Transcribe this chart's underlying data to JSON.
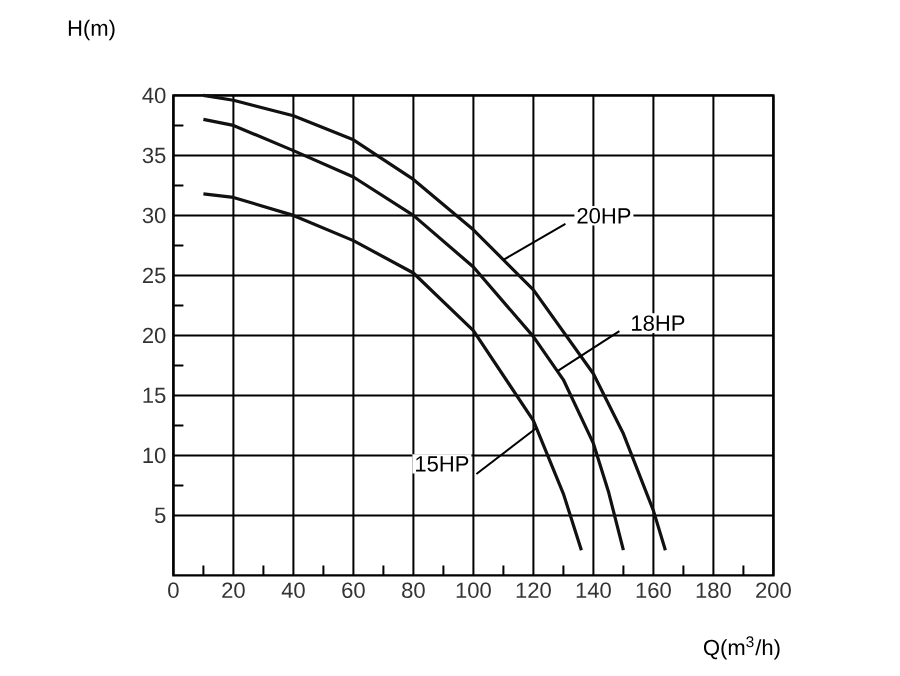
{
  "chart_data": {
    "type": "line",
    "xlabel": "Q(m$^{3}$/h)",
    "ylabel": "H(m)",
    "xlim": [
      0,
      200
    ],
    "ylim": [
      0,
      40
    ],
    "xticks": [
      0,
      20,
      40,
      60,
      80,
      100,
      120,
      140,
      160,
      180,
      200
    ],
    "yticks": [
      5,
      10,
      15,
      20,
      25,
      30,
      35,
      40
    ],
    "grid": true,
    "marker": "none",
    "line_style": "solid",
    "series": [
      {
        "color": "#111111",
        "x": [
          10,
          20,
          40,
          60,
          80,
          100,
          120,
          140,
          150,
          160,
          164
        ],
        "values": [
          40,
          39.6,
          38.3,
          36.3,
          33,
          28.8,
          23.8,
          16.8,
          11.8,
          5.4,
          2.1
        ]
      },
      {
        "color": "#111111",
        "x": [
          10,
          20,
          40,
          60,
          80,
          100,
          120,
          130,
          140,
          145,
          150
        ],
        "values": [
          38,
          37.5,
          35.4,
          33.2,
          30,
          25.7,
          19.9,
          16.3,
          11,
          7,
          2.1
        ]
      },
      {
        "color": "#111111",
        "x": [
          10,
          20,
          40,
          60,
          80,
          100,
          120,
          130,
          136
        ],
        "values": [
          31.8,
          31.5,
          30,
          27.9,
          25.2,
          20.4,
          12.9,
          6.8,
          2.1
        ]
      }
    ],
    "annotations": [
      {
        "text": "20HP",
        "x": 110,
        "y": 26.3
      },
      {
        "text": "18HP",
        "x": 128,
        "y": 17.02
      },
      {
        "text": "15HP",
        "x": 121,
        "y": 12.29
      }
    ]
  }
}
